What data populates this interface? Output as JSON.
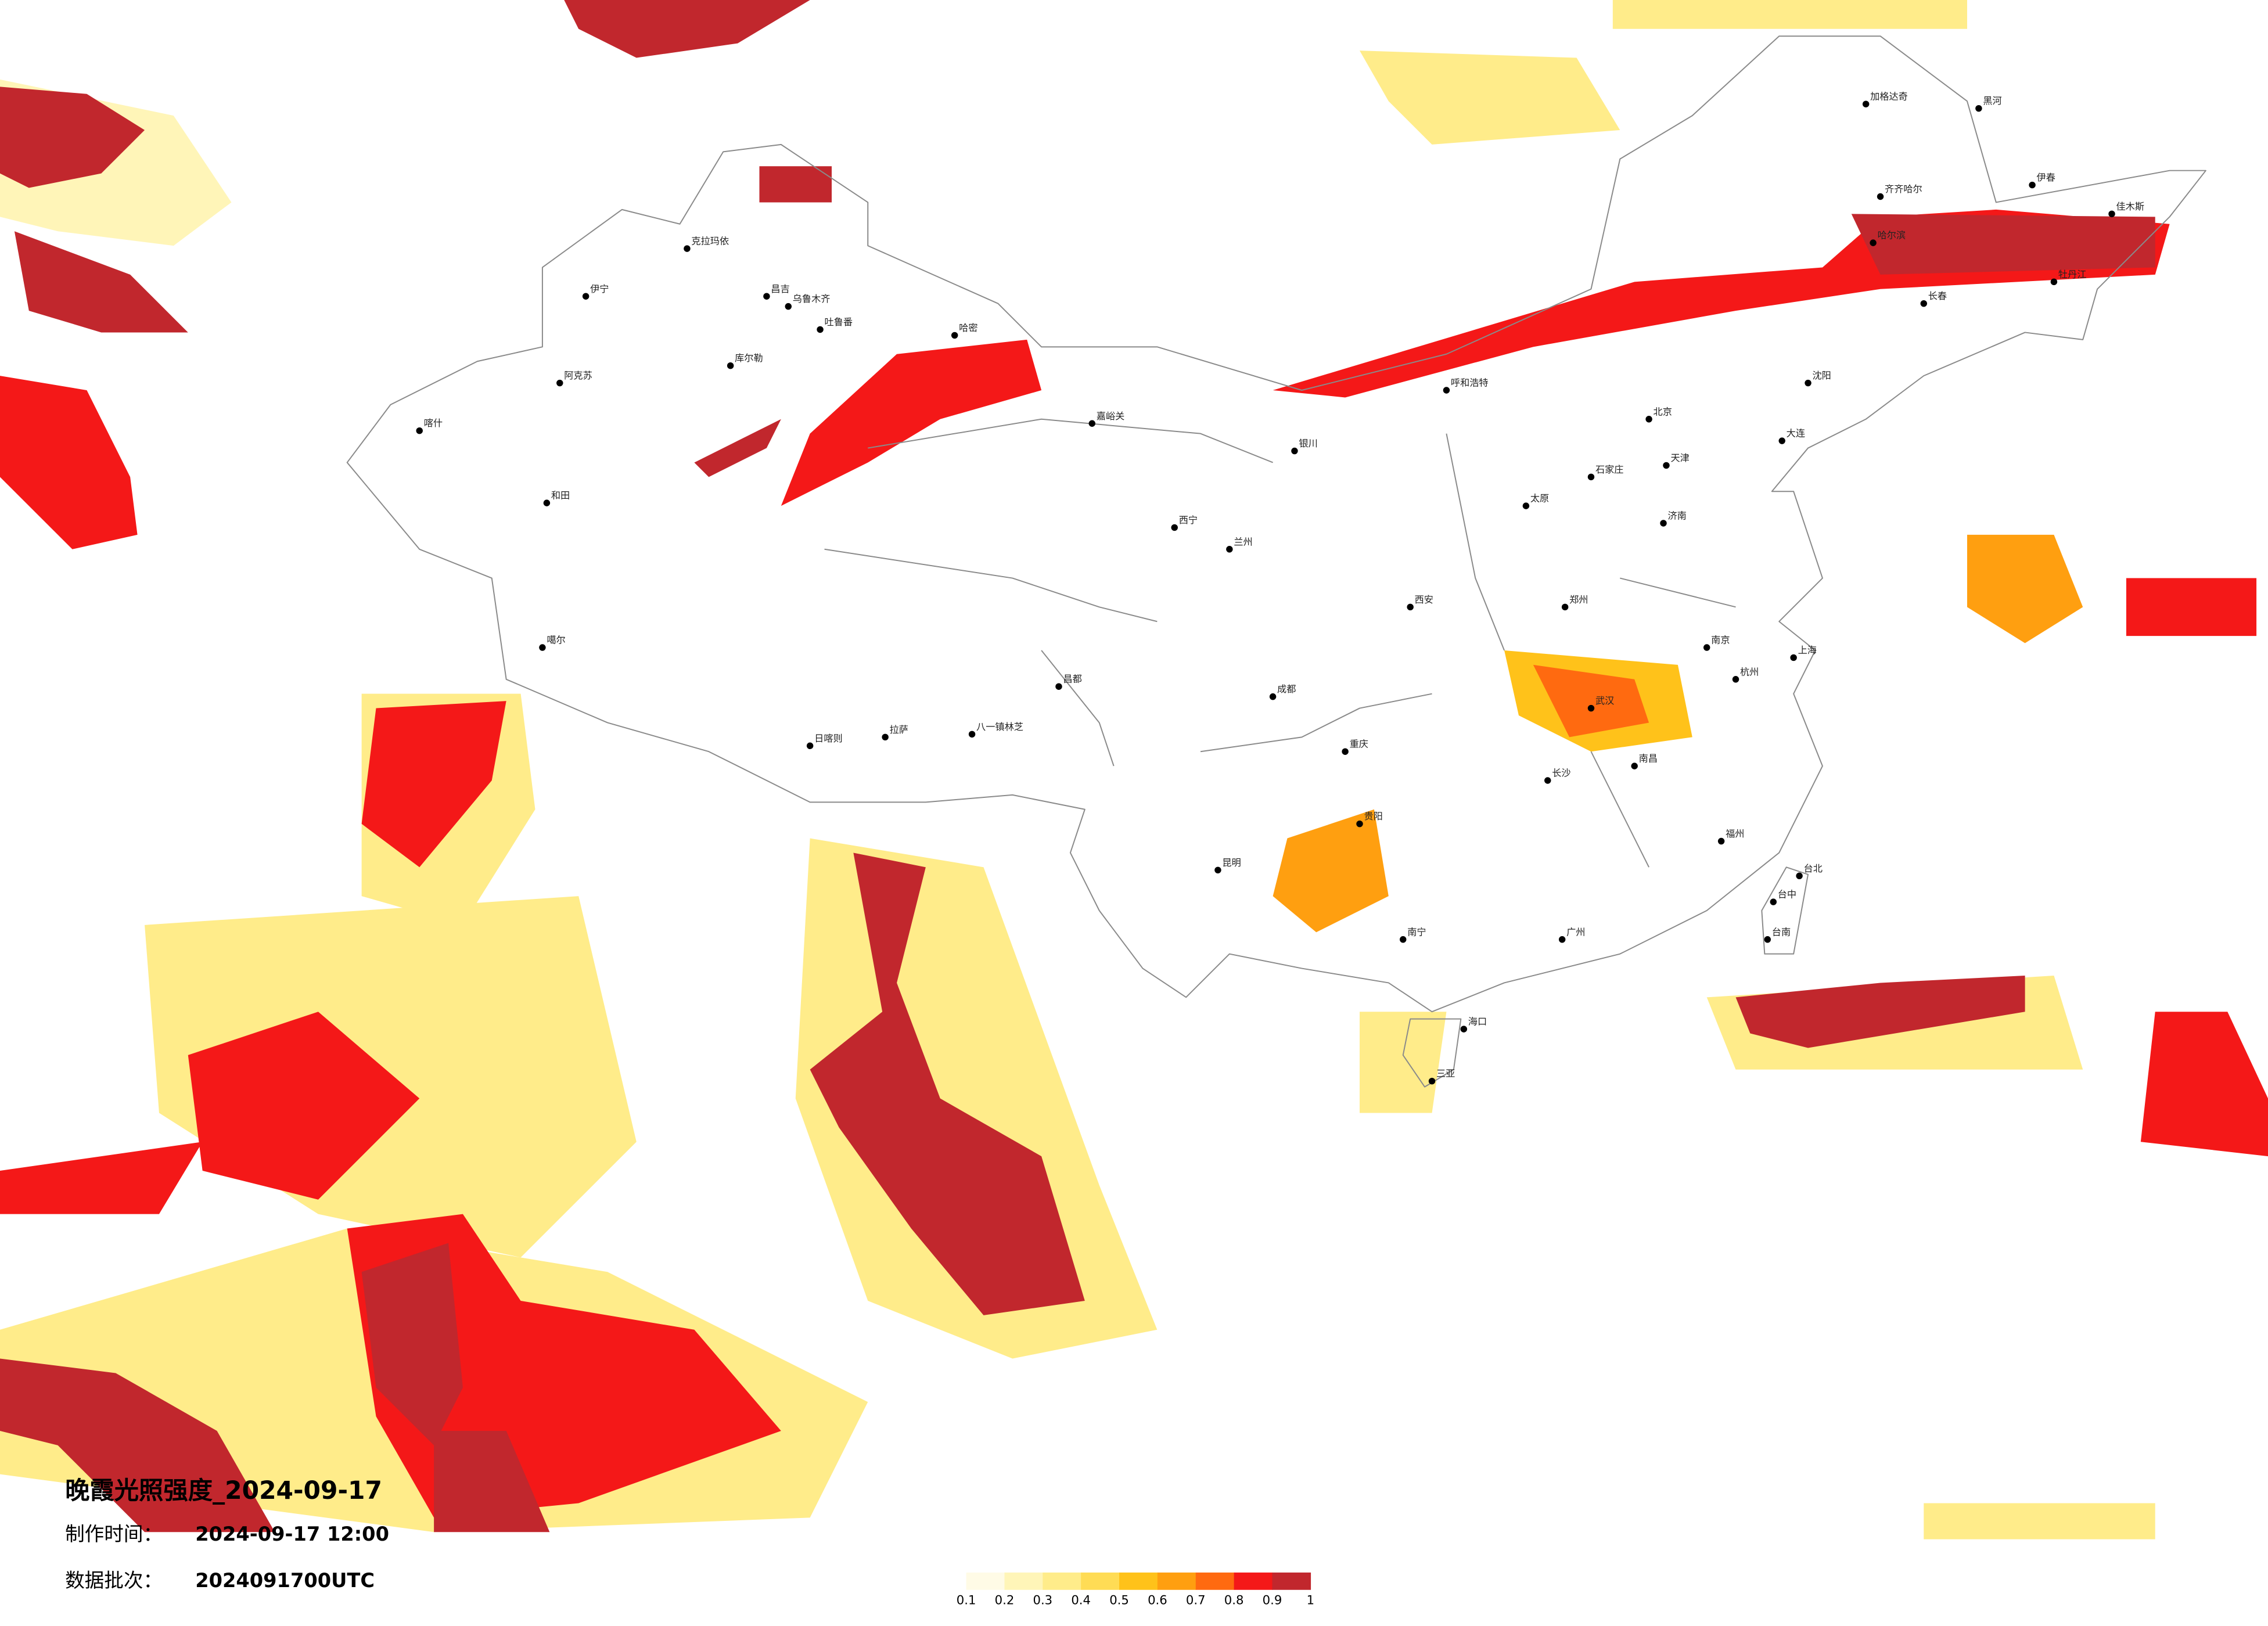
{
  "title": "晚霞光照强度_2024-09-17",
  "info": [
    {
      "label": "制作时间：",
      "value": "2024-09-17 12:00"
    },
    {
      "label": "数据批次：",
      "value": "2024091700UTC"
    }
  ],
  "legend": {
    "ticks": [
      0.1,
      0.2,
      0.3,
      0.4,
      0.5,
      0.6,
      0.7,
      0.8,
      0.9,
      1
    ],
    "colors": [
      "#fffbe6",
      "#fff5b8",
      "#ffec8a",
      "#ffdc55",
      "#ffc21a",
      "#ff9f10",
      "#ff6a10",
      "#f41818",
      "#c1272d"
    ]
  },
  "cities": [
    "伊宁",
    "阿克苏",
    "和田",
    "喀什",
    "克拉玛依",
    "昌吉",
    "乌鲁木齐",
    "吐鲁番",
    "库尔勒",
    "哈密",
    "嘉峪关",
    "噶尔",
    "日喀则",
    "拉萨",
    "八一镇林芝",
    "昌都",
    "西宁",
    "兰州",
    "银川",
    "呼和浩特",
    "北京",
    "天津",
    "石家庄",
    "太原",
    "济南",
    "郑州",
    "西安",
    "武汉",
    "成都",
    "重庆",
    "长沙",
    "南昌",
    "杭州",
    "上海",
    "南京",
    "福州",
    "广州",
    "南宁",
    "昆明",
    "贵阳",
    "海口",
    "三亚",
    "台北",
    "台中",
    "台南",
    "哈尔滨",
    "长春",
    "沈阳",
    "大连",
    "加格达奇",
    "黑河",
    "伊春",
    "佳木斯",
    "牡丹江",
    "齐齐哈尔"
  ]
}
